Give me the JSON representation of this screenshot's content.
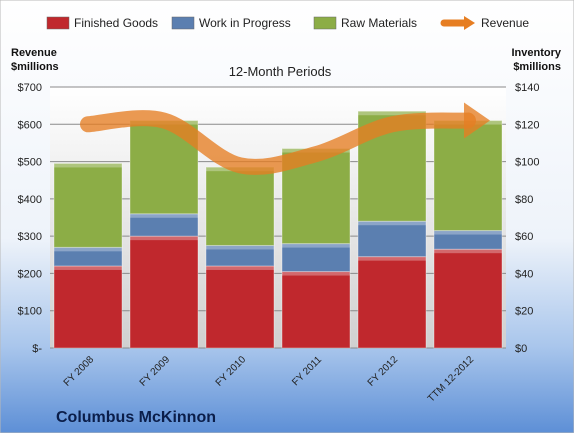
{
  "chart_data": {
    "type": "bar",
    "stacked": true,
    "title": "12-Month Periods",
    "company": "Columbus McKinnon",
    "left_axis_title": [
      "Revenue",
      "$millions"
    ],
    "right_axis_title": [
      "Inventory",
      "$millions"
    ],
    "categories": [
      "FY 2008",
      "FY 2009",
      "FY 2010",
      "FY 2011",
      "FY 2012",
      "TTM 12-2012"
    ],
    "left_ticks": [
      "$-",
      "$100",
      "$200",
      "$300",
      "$400",
      "$500",
      "$600",
      "$700"
    ],
    "right_ticks": [
      "$0",
      "$20",
      "$40",
      "$60",
      "$80",
      "$100",
      "$120",
      "$140"
    ],
    "ylim_left": [
      0,
      700
    ],
    "ylim_right": [
      0,
      140
    ],
    "series": [
      {
        "name": "Finished Goods",
        "axis": "right",
        "color": "#c0282d",
        "values": [
          44,
          60,
          44,
          41,
          49,
          53
        ]
      },
      {
        "name": "Work in Progress",
        "axis": "right",
        "color": "#5b7fb0",
        "values": [
          10,
          12,
          11,
          15,
          19,
          10
        ]
      },
      {
        "name": "Raw Materials",
        "axis": "right",
        "color": "#8cad46",
        "values": [
          45,
          50,
          42,
          51,
          59,
          59
        ]
      },
      {
        "name": "Revenue",
        "axis": "left",
        "type": "line",
        "color": "#e67e22",
        "values": [
          600,
          610,
          490,
          520,
          600,
          610
        ]
      }
    ],
    "legend_position": "top",
    "grid": true
  }
}
